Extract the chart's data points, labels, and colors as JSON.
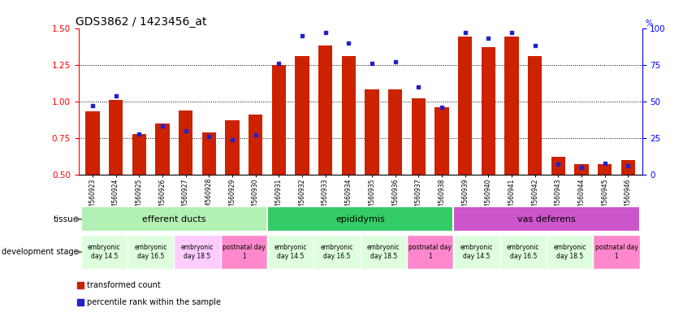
{
  "title": "GDS3862 / 1423456_at",
  "samples": [
    "GSM560923",
    "GSM560924",
    "GSM560925",
    "GSM560926",
    "GSM560927",
    "GSM560928",
    "GSM560929",
    "GSM560930",
    "GSM560931",
    "GSM560932",
    "GSM560933",
    "GSM560934",
    "GSM560935",
    "GSM560936",
    "GSM560937",
    "GSM560938",
    "GSM560939",
    "GSM560940",
    "GSM560941",
    "GSM560942",
    "GSM560943",
    "GSM560944",
    "GSM560945",
    "GSM560946"
  ],
  "red_values": [
    0.93,
    1.01,
    0.78,
    0.85,
    0.94,
    0.79,
    0.87,
    0.91,
    1.25,
    1.31,
    1.38,
    1.31,
    1.08,
    1.08,
    1.02,
    0.96,
    1.44,
    1.37,
    1.44,
    1.31,
    0.62,
    0.57,
    0.57,
    0.6
  ],
  "blue_values": [
    47,
    54,
    28,
    33,
    30,
    26,
    24,
    27,
    76,
    95,
    97,
    90,
    76,
    77,
    60,
    46,
    97,
    93,
    97,
    88,
    7,
    5,
    8,
    6
  ],
  "ylim_left": [
    0.5,
    1.5
  ],
  "ylim_right": [
    0,
    100
  ],
  "yticks_left": [
    0.5,
    0.75,
    1.0,
    1.25,
    1.5
  ],
  "yticks_right": [
    0,
    25,
    50,
    75,
    100
  ],
  "hlines": [
    0.75,
    1.0,
    1.25
  ],
  "tissues": [
    {
      "label": "efferent ducts",
      "start": 0,
      "end": 7,
      "color": "#b3f0b3"
    },
    {
      "label": "epididymis",
      "start": 8,
      "end": 15,
      "color": "#33cc66"
    },
    {
      "label": "vas deferens",
      "start": 16,
      "end": 23,
      "color": "#cc55cc"
    }
  ],
  "dev_stage_groups": [
    {
      "label": "embryonic\nday 14.5",
      "start": 0,
      "end": 1,
      "color": "#ddffdd"
    },
    {
      "label": "embryonic\nday 16.5",
      "start": 2,
      "end": 3,
      "color": "#ddffdd"
    },
    {
      "label": "embryonic\nday 18.5",
      "start": 4,
      "end": 5,
      "color": "#ffccff"
    },
    {
      "label": "postnatal day\n1",
      "start": 6,
      "end": 7,
      "color": "#ff88cc"
    },
    {
      "label": "embryonic\nday 14.5",
      "start": 8,
      "end": 9,
      "color": "#ddffdd"
    },
    {
      "label": "embryonic\nday 16.5",
      "start": 10,
      "end": 11,
      "color": "#ddffdd"
    },
    {
      "label": "embryonic\nday 18.5",
      "start": 12,
      "end": 13,
      "color": "#ddffdd"
    },
    {
      "label": "postnatal day\n1",
      "start": 14,
      "end": 15,
      "color": "#ff88cc"
    },
    {
      "label": "embryonic\nday 14.5",
      "start": 16,
      "end": 17,
      "color": "#ddffdd"
    },
    {
      "label": "embryonic\nday 16.5",
      "start": 18,
      "end": 19,
      "color": "#ddffdd"
    },
    {
      "label": "embryonic\nday 18.5",
      "start": 20,
      "end": 21,
      "color": "#ddffdd"
    },
    {
      "label": "postnatal day\n1",
      "start": 22,
      "end": 23,
      "color": "#ff88cc"
    }
  ],
  "bar_color": "#cc2200",
  "dot_color": "#2222cc",
  "bar_bottom": 0.5,
  "bar_width": 0.6,
  "background_color": "#ffffff"
}
